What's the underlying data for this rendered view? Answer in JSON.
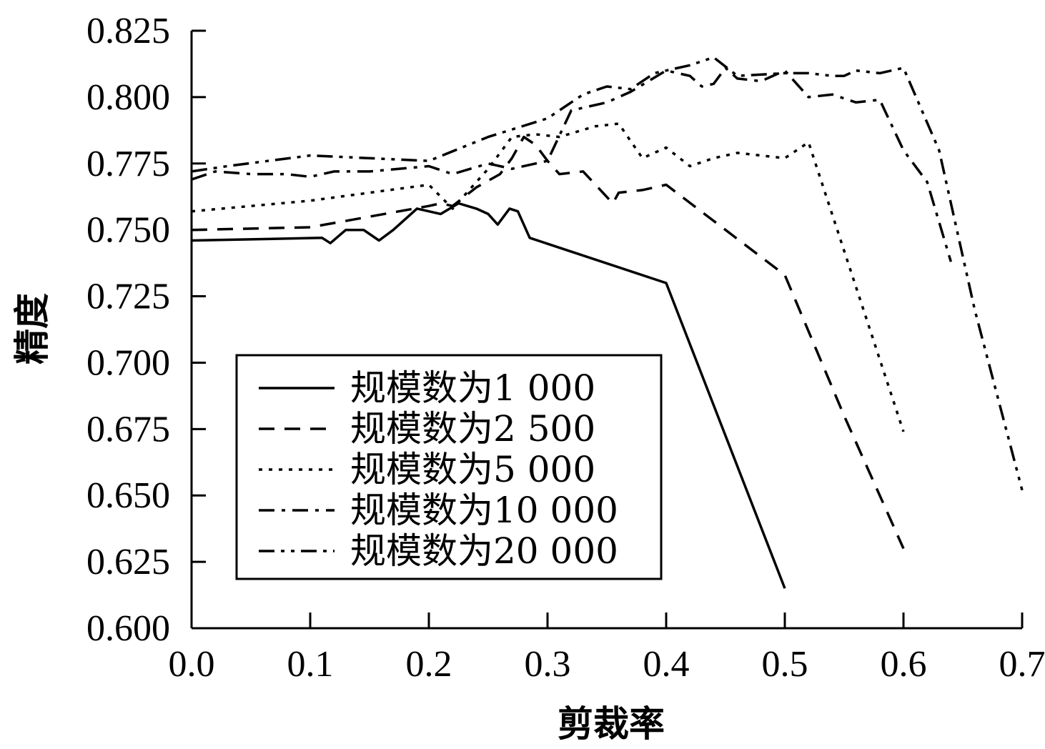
{
  "chart_data": {
    "type": "line",
    "xlabel": "剪裁率",
    "ylabel": "精度",
    "xlim": [
      0,
      0.7
    ],
    "ylim": [
      0.6,
      0.825
    ],
    "x_ticks": [
      "0.0",
      "0.1",
      "0.2",
      "0.3",
      "0.4",
      "0.5",
      "0.6",
      "0.7"
    ],
    "y_ticks": [
      "0.600",
      "0.625",
      "0.650",
      "0.675",
      "0.700",
      "0.725",
      "0.750",
      "0.775",
      "0.800",
      "0.825"
    ],
    "legend_position": "lower-left",
    "series": [
      {
        "name": "规模数为1 000",
        "dash": "solid",
        "points": [
          [
            0,
            0.746
          ],
          [
            0.11,
            0.747
          ],
          [
            0.117,
            0.745
          ],
          [
            0.13,
            0.75
          ],
          [
            0.145,
            0.75
          ],
          [
            0.158,
            0.746
          ],
          [
            0.17,
            0.75
          ],
          [
            0.19,
            0.758
          ],
          [
            0.21,
            0.756
          ],
          [
            0.225,
            0.76
          ],
          [
            0.24,
            0.758
          ],
          [
            0.25,
            0.756
          ],
          [
            0.258,
            0.752
          ],
          [
            0.268,
            0.758
          ],
          [
            0.275,
            0.757
          ],
          [
            0.285,
            0.747
          ],
          [
            0.4,
            0.73
          ],
          [
            0.5,
            0.615
          ]
        ]
      },
      {
        "name": "规模数为2 500",
        "dash": "dashed",
        "points": [
          [
            0,
            0.75
          ],
          [
            0.1,
            0.751
          ],
          [
            0.2,
            0.759
          ],
          [
            0.21,
            0.76
          ],
          [
            0.22,
            0.759
          ],
          [
            0.24,
            0.766
          ],
          [
            0.26,
            0.771
          ],
          [
            0.27,
            0.777
          ],
          [
            0.28,
            0.785
          ],
          [
            0.29,
            0.782
          ],
          [
            0.3,
            0.776
          ],
          [
            0.31,
            0.771
          ],
          [
            0.33,
            0.772
          ],
          [
            0.355,
            0.76
          ],
          [
            0.36,
            0.764
          ],
          [
            0.38,
            0.765
          ],
          [
            0.4,
            0.767
          ],
          [
            0.45,
            0.75
          ],
          [
            0.5,
            0.733
          ],
          [
            0.55,
            0.68
          ],
          [
            0.6,
            0.63
          ]
        ]
      },
      {
        "name": "规模数为5 000",
        "dash": "dotted",
        "points": [
          [
            0,
            0.757
          ],
          [
            0.1,
            0.761
          ],
          [
            0.2,
            0.767
          ],
          [
            0.22,
            0.758
          ],
          [
            0.25,
            0.773
          ],
          [
            0.27,
            0.785
          ],
          [
            0.29,
            0.786
          ],
          [
            0.31,
            0.785
          ],
          [
            0.34,
            0.789
          ],
          [
            0.36,
            0.79
          ],
          [
            0.38,
            0.777
          ],
          [
            0.4,
            0.781
          ],
          [
            0.42,
            0.774
          ],
          [
            0.44,
            0.777
          ],
          [
            0.46,
            0.779
          ],
          [
            0.5,
            0.777
          ],
          [
            0.52,
            0.783
          ],
          [
            0.6,
            0.674
          ]
        ]
      },
      {
        "name": "规模数为10 000",
        "dash": "dash-dot",
        "points": [
          [
            0,
            0.769
          ],
          [
            0.02,
            0.772
          ],
          [
            0.05,
            0.771
          ],
          [
            0.08,
            0.771
          ],
          [
            0.1,
            0.77
          ],
          [
            0.12,
            0.772
          ],
          [
            0.15,
            0.772
          ],
          [
            0.2,
            0.774
          ],
          [
            0.22,
            0.771
          ],
          [
            0.25,
            0.775
          ],
          [
            0.27,
            0.773
          ],
          [
            0.3,
            0.776
          ],
          [
            0.32,
            0.795
          ],
          [
            0.35,
            0.798
          ],
          [
            0.37,
            0.802
          ],
          [
            0.4,
            0.81
          ],
          [
            0.42,
            0.808
          ],
          [
            0.43,
            0.804
          ],
          [
            0.44,
            0.805
          ],
          [
            0.45,
            0.811
          ],
          [
            0.46,
            0.807
          ],
          [
            0.48,
            0.806
          ],
          [
            0.5,
            0.81
          ],
          [
            0.52,
            0.8
          ],
          [
            0.54,
            0.801
          ],
          [
            0.56,
            0.798
          ],
          [
            0.58,
            0.799
          ],
          [
            0.6,
            0.78
          ],
          [
            0.62,
            0.768
          ],
          [
            0.64,
            0.738
          ]
        ]
      },
      {
        "name": "规模数为20 000",
        "dash": "dash-dot-dot",
        "points": [
          [
            0,
            0.772
          ],
          [
            0.03,
            0.774
          ],
          [
            0.1,
            0.778
          ],
          [
            0.2,
            0.776
          ],
          [
            0.25,
            0.785
          ],
          [
            0.3,
            0.792
          ],
          [
            0.33,
            0.801
          ],
          [
            0.35,
            0.804
          ],
          [
            0.37,
            0.803
          ],
          [
            0.38,
            0.806
          ],
          [
            0.39,
            0.809
          ],
          [
            0.4,
            0.81
          ],
          [
            0.42,
            0.812
          ],
          [
            0.44,
            0.815
          ],
          [
            0.46,
            0.808
          ],
          [
            0.5,
            0.809
          ],
          [
            0.52,
            0.809
          ],
          [
            0.54,
            0.808
          ],
          [
            0.55,
            0.808
          ],
          [
            0.56,
            0.81
          ],
          [
            0.58,
            0.809
          ],
          [
            0.6,
            0.811
          ],
          [
            0.63,
            0.78
          ],
          [
            0.66,
            0.72
          ],
          [
            0.7,
            0.652
          ]
        ]
      }
    ]
  }
}
